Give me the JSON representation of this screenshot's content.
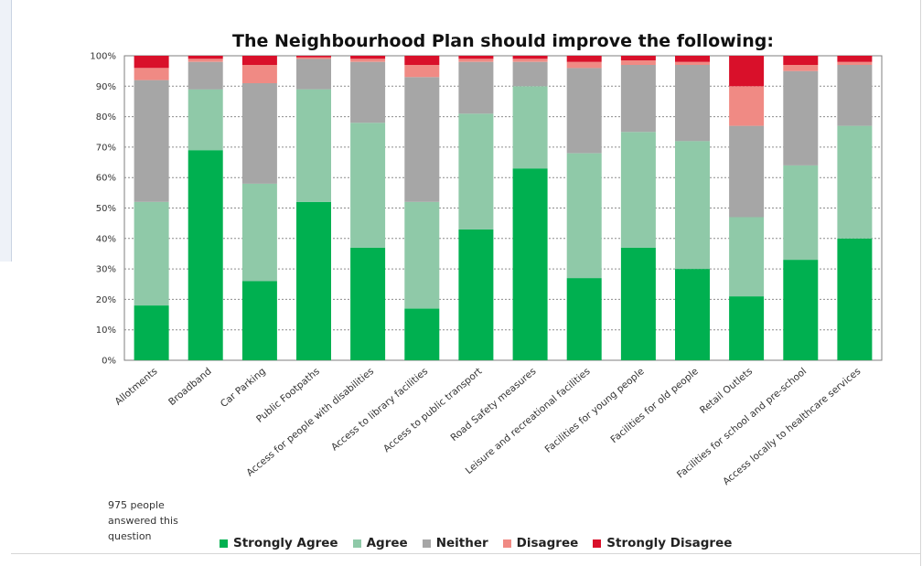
{
  "page": {
    "note": "975 people answered this question"
  },
  "chart_data": {
    "type": "bar",
    "stacked": true,
    "title": "The Neighbourhood Plan should improve the following:",
    "xlabel": "",
    "ylabel": "",
    "ylim": [
      0,
      100
    ],
    "yticks": [
      "0%",
      "10%",
      "20%",
      "30%",
      "40%",
      "50%",
      "60%",
      "70%",
      "80%",
      "90%",
      "100%"
    ],
    "grid": true,
    "legend_position": "bottom",
    "categories": [
      "Allotments",
      "Broadband",
      "Car Parking",
      "Public Footpaths",
      "Access for people with disabilities",
      "Access to library facilities",
      "Access to public transport",
      "Road Safety measures",
      "Leisure and recreational facilities",
      "Facilities for young people",
      "Facilities for old people",
      "Retail Outlets",
      "Facilities for school and pre-school",
      "Access locally to healthcare services"
    ],
    "series": [
      {
        "name": "Strongly Agree",
        "color": "#00b050",
        "values": [
          18,
          69,
          26,
          52,
          37,
          17,
          43,
          63,
          27,
          37,
          30,
          21,
          33,
          40
        ]
      },
      {
        "name": "Agree",
        "color": "#8fc9a8",
        "values": [
          34,
          20,
          32,
          37,
          41,
          35,
          38,
          27,
          41,
          38,
          42,
          26,
          31,
          37
        ]
      },
      {
        "name": "Neither",
        "color": "#a6a6a6",
        "values": [
          40,
          9,
          33,
          10,
          20,
          41,
          17,
          8,
          28,
          22,
          25,
          30,
          31,
          20
        ]
      },
      {
        "name": "Disagree",
        "color": "#f08a84",
        "values": [
          4,
          1,
          6,
          0.5,
          1,
          4,
          1,
          1,
          2,
          1.5,
          1,
          13,
          2,
          1
        ]
      },
      {
        "name": "Strongly Disagree",
        "color": "#d9102a",
        "values": [
          4,
          1,
          3,
          0.5,
          1,
          3,
          1,
          1,
          2,
          1.5,
          2,
          10,
          3,
          2
        ]
      }
    ]
  }
}
